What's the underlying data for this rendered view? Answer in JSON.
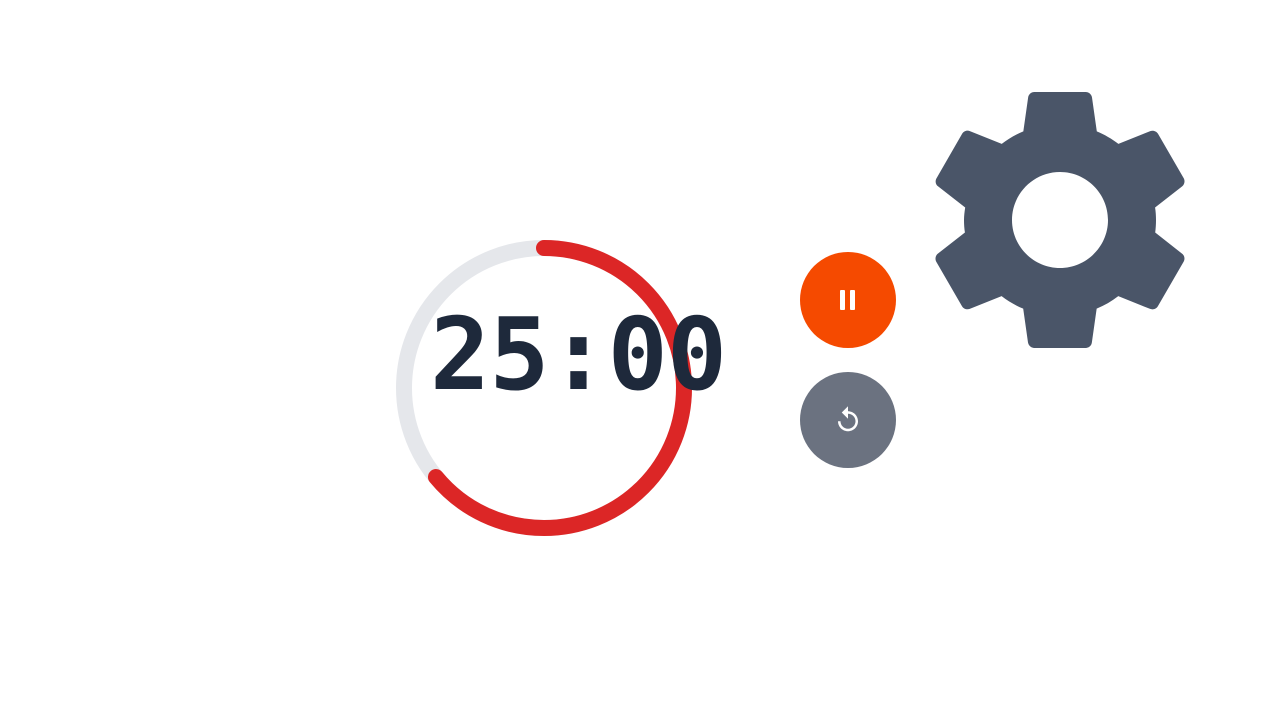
{
  "timer": {
    "display": "25:00",
    "progress": 0.64
  },
  "controls": {
    "pause_icon": "pause-icon",
    "reset_icon": "reset-icon",
    "settings_icon": "gear-icon"
  },
  "colors": {
    "text": "#1e293b",
    "ring_track": "#e5e7eb",
    "ring_progress": "#dc2626",
    "pause_button": "#f54a00",
    "reset_button": "#6b7280",
    "gear": "#4a5568",
    "icon_fg": "#ffffff"
  }
}
